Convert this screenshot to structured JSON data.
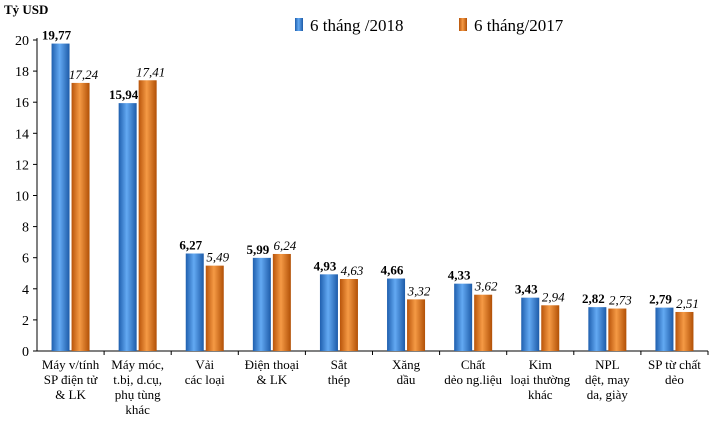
{
  "chart_data": {
    "type": "bar",
    "ylabel": "Tỷ USD",
    "ylim": [
      0,
      20
    ],
    "yticks": [
      0,
      2,
      4,
      6,
      8,
      10,
      12,
      14,
      16,
      18,
      20
    ],
    "legend_position": "top",
    "categories": [
      [
        "Máy v/tính",
        "SP điện tử",
        "& LK"
      ],
      [
        "Máy móc,",
        "t.bị, d.cụ,",
        "phụ tùng",
        "khác"
      ],
      [
        "Vải",
        "các loại"
      ],
      [
        "Điện thoại",
        "& LK"
      ],
      [
        "Sắt",
        "thép"
      ],
      [
        "Xăng",
        "dầu"
      ],
      [
        "Chất",
        "dẻo ng.liệu"
      ],
      [
        "Kim",
        "loại thường",
        "khác"
      ],
      [
        "NPL",
        "dệt, may",
        "da, giày"
      ],
      [
        "SP từ chất",
        "dẻo"
      ]
    ],
    "series": [
      {
        "name": "6 tháng /2018",
        "color": "#2E7BD6",
        "values": [
          19.77,
          15.94,
          6.27,
          5.99,
          4.93,
          4.66,
          4.33,
          3.43,
          2.82,
          2.79
        ],
        "labels": [
          "19,77",
          "15,94",
          "6,27",
          "5,99",
          "4,93",
          "4,66",
          "4,33",
          "3,43",
          "2,82",
          "2,79"
        ]
      },
      {
        "name": "6 tháng/2017",
        "color": "#E46C0A",
        "values": [
          17.24,
          17.41,
          5.49,
          6.24,
          4.63,
          3.32,
          3.62,
          2.94,
          2.73,
          2.51
        ],
        "labels": [
          "17,24",
          "17,41",
          "5,49",
          "6,24",
          "4,63",
          "3,32",
          "3,62",
          "2,94",
          "2,73",
          "2,51"
        ]
      }
    ],
    "grid": false
  }
}
